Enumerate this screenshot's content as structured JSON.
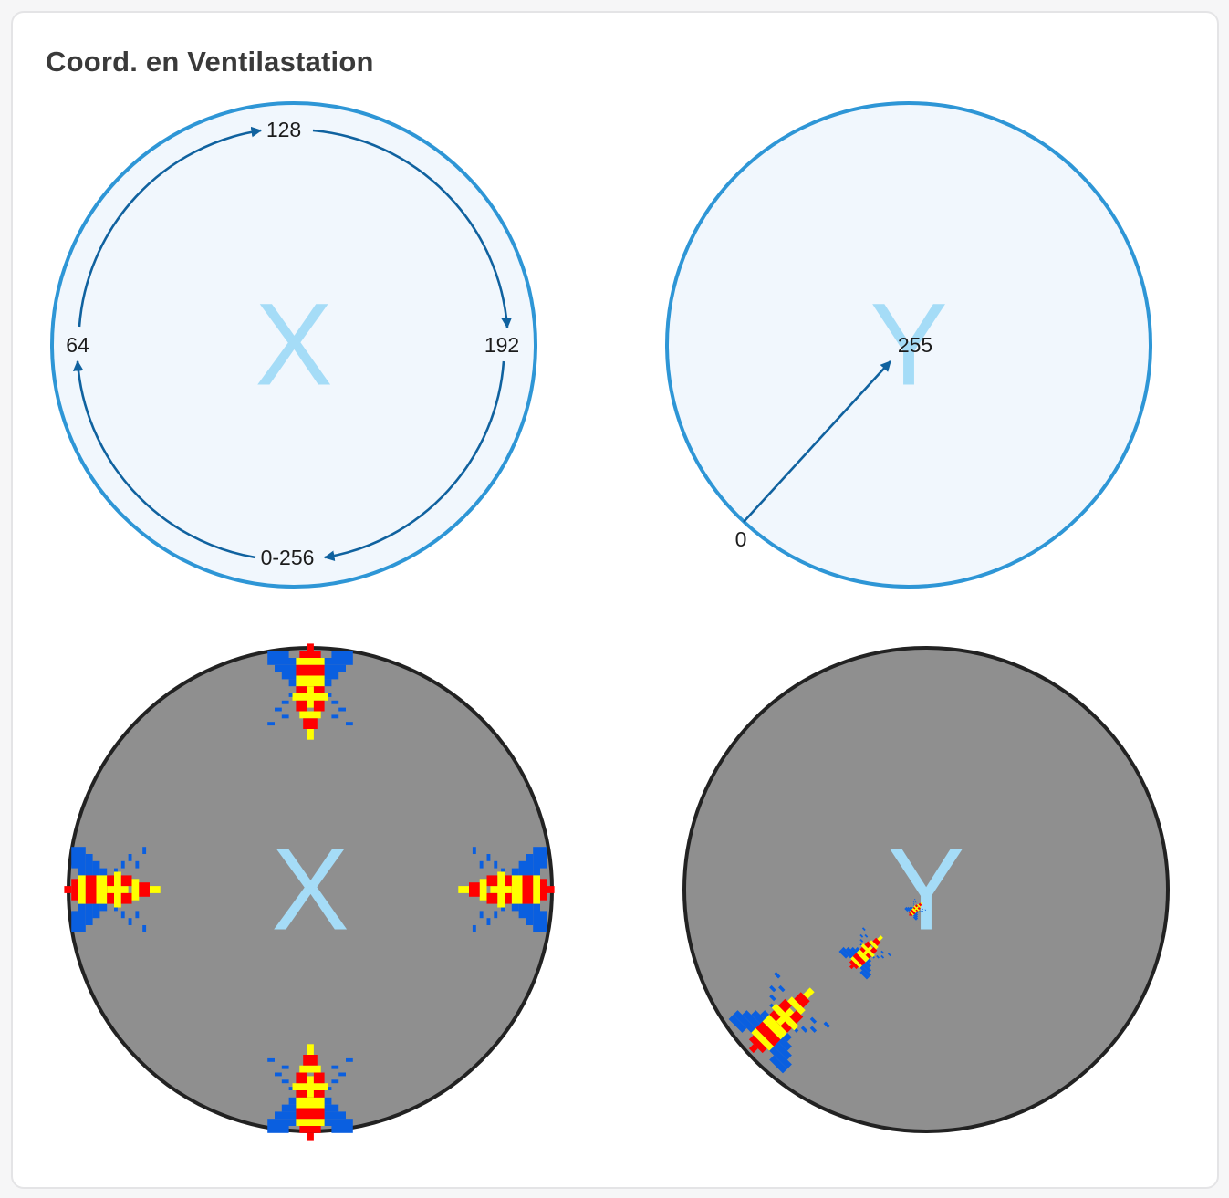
{
  "title": "Coord. en Ventilastation",
  "diagram_x": {
    "letter": "X",
    "labels": {
      "top": "128",
      "left": "64",
      "right": "192",
      "bottom": "0-256"
    }
  },
  "diagram_y": {
    "letter": "Y",
    "labels": {
      "center": "255",
      "edge": "0"
    }
  },
  "display_x": {
    "letter": "X"
  },
  "display_y": {
    "letter": "Y"
  },
  "colors": {
    "ring": "#2e96d6",
    "ring_fill": "#f1f7fd",
    "arrow": "#10629f",
    "letter": "#a5dcf7",
    "display_bg": "#8f8f8f",
    "display_border": "#222222",
    "sprite_wing": "#0a5fe0",
    "sprite_body_red": "#ff0000",
    "sprite_body_yellow": "#ffff00"
  }
}
